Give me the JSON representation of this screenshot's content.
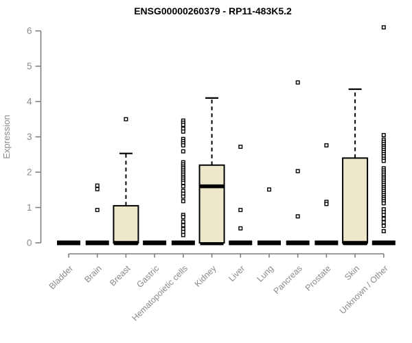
{
  "chart_data": {
    "type": "boxplot",
    "title": "ENSG00000260379 - RP11-483K5.2",
    "xlabel": "",
    "ylabel": "Expression",
    "ylim": [
      0,
      6
    ],
    "yticks": [
      0,
      1,
      2,
      3,
      4,
      5,
      6
    ],
    "grid": false,
    "legend": "none",
    "box_fill_color": "#EDE7CC",
    "box_line_color": "#000000",
    "axis_color": "#7F7F7F",
    "text_color": "#8A8A8A",
    "title_color": "#000000",
    "categories": [
      {
        "label": "Bladder",
        "median": 0,
        "q1": 0,
        "q3": 0,
        "whisker_low": 0,
        "whisker_high": 0,
        "outliers": []
      },
      {
        "label": "Brain",
        "median": 0,
        "q1": 0,
        "q3": 0,
        "whisker_low": 0,
        "whisker_high": 0,
        "outliers": [
          1.62,
          1.52,
          0.93
        ]
      },
      {
        "label": "Breast",
        "median": 0,
        "q1": 0,
        "q3": 1.05,
        "whisker_low": 0,
        "whisker_high": 2.53,
        "outliers": [
          3.5
        ]
      },
      {
        "label": "Gastric",
        "median": 0,
        "q1": 0,
        "q3": 0,
        "whisker_low": 0,
        "whisker_high": 0,
        "outliers": []
      },
      {
        "label": "Hematopoietic cells",
        "median": 0,
        "q1": 0,
        "q3": 0,
        "whisker_low": 0,
        "whisker_high": 0,
        "outliers": [
          3.46,
          3.4,
          3.34,
          3.23,
          3.15,
          2.94,
          2.88,
          2.82,
          2.76,
          2.59,
          2.28,
          2.22,
          2.16,
          2.11,
          2.05,
          1.99,
          1.93,
          1.87,
          1.82,
          1.76,
          1.7,
          1.6,
          1.47,
          1.39,
          1.31,
          1.18,
          0.79,
          0.73,
          0.6,
          0.5,
          0.39,
          0.31,
          0.22
        ]
      },
      {
        "label": "Kidney",
        "median": 1.6,
        "q1": 0,
        "q3": 2.2,
        "whisker_low": 0,
        "whisker_high": 4.1,
        "outliers": []
      },
      {
        "label": "Liver",
        "median": 0,
        "q1": 0,
        "q3": 0,
        "whisker_low": 0,
        "whisker_high": 0,
        "outliers": [
          2.72,
          0.93,
          0.41
        ]
      },
      {
        "label": "Lung",
        "median": 0,
        "q1": 0,
        "q3": 0,
        "whisker_low": 0,
        "whisker_high": 0,
        "outliers": [
          1.51
        ]
      },
      {
        "label": "Pancreas",
        "median": 0,
        "q1": 0,
        "q3": 0,
        "whisker_low": 0,
        "whisker_high": 0,
        "outliers": [
          4.54,
          2.03,
          0.75
        ]
      },
      {
        "label": "Prostate",
        "median": 0,
        "q1": 0,
        "q3": 0,
        "whisker_low": 0,
        "whisker_high": 0,
        "outliers": [
          2.76,
          1.16,
          1.1
        ]
      },
      {
        "label": "Skin",
        "median": 0,
        "q1": 0,
        "q3": 2.4,
        "whisker_low": 0,
        "whisker_high": 4.35,
        "outliers": []
      },
      {
        "label": "Unknown / Other",
        "median": 0,
        "q1": 0,
        "q3": 0,
        "whisker_low": 0,
        "whisker_high": 0,
        "outliers": [
          6.1,
          3.05,
          2.92,
          2.86,
          2.8,
          2.74,
          2.69,
          2.63,
          2.57,
          2.51,
          2.45,
          2.38,
          2.32,
          2.11,
          2.05,
          1.99,
          1.93,
          1.87,
          1.82,
          1.76,
          1.7,
          1.64,
          1.58,
          1.53,
          1.47,
          1.41,
          1.35,
          1.29,
          1.24,
          1.18,
          1.12,
          0.95,
          0.87,
          0.79,
          0.68,
          0.58,
          0.48,
          0.33
        ]
      }
    ]
  }
}
